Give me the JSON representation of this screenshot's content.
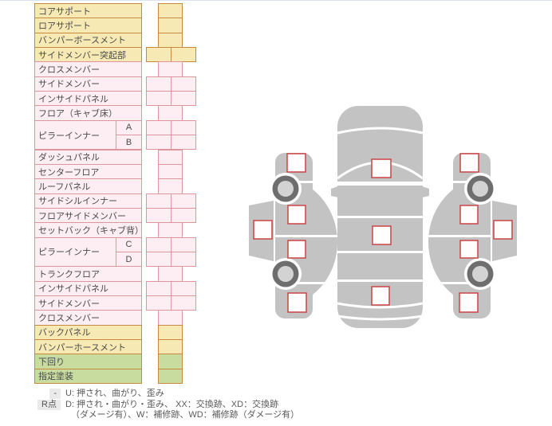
{
  "table": {
    "rows": [
      {
        "label": "コアサポート",
        "tone": "yellow",
        "cells": 1
      },
      {
        "label": "ロアサポート",
        "tone": "yellow",
        "cells": 1
      },
      {
        "label": "バンパーボースメント",
        "tone": "yellow",
        "cells": 1
      },
      {
        "label": "サイドメンバー突起部",
        "tone": "yellow",
        "cells": 2
      },
      {
        "label": "クロスメンバー",
        "tone": "pink",
        "cells": 1
      },
      {
        "label": "サイドメンバー",
        "tone": "pink",
        "cells": 2
      },
      {
        "label": "インサイドパネル",
        "tone": "pink",
        "cells": 2
      },
      {
        "label": "フロア（キャブ床）",
        "tone": "pink",
        "cells": 1
      },
      {
        "label": "ピラーインナー",
        "sub": "A",
        "tone": "pink",
        "cells": 2,
        "span": 2
      },
      {
        "sub": "B",
        "tone": "pink",
        "cells": 2,
        "merged": true
      },
      {
        "label": "ダッシュパネル",
        "tone": "pink",
        "cells": 1
      },
      {
        "label": "センターフロア",
        "tone": "pink",
        "cells": 1
      },
      {
        "label": "ルーフパネル",
        "tone": "pink",
        "cells": 1
      },
      {
        "label": "サイドシルインナー",
        "tone": "pink",
        "cells": 2
      },
      {
        "label": "フロアサイドメンバー",
        "tone": "pink",
        "cells": 2
      },
      {
        "label": "セットバック（キャブ背）",
        "tone": "pink",
        "cells": 1
      },
      {
        "label": "ピラーインナー",
        "sub": "C",
        "tone": "pink",
        "cells": 2,
        "span": 2
      },
      {
        "sub": "D",
        "tone": "pink",
        "cells": 2,
        "merged": true
      },
      {
        "label": "トランクフロア",
        "tone": "pink",
        "cells": 1
      },
      {
        "label": "インサイドパネル",
        "tone": "pink",
        "cells": 2
      },
      {
        "label": "サイドメンバー",
        "tone": "pink",
        "cells": 2
      },
      {
        "label": "クロスメンバー",
        "tone": "pink",
        "cells": 1
      },
      {
        "label": "バックパネル",
        "tone": "yellow",
        "cells": 1
      },
      {
        "label": "バンパーホースメント",
        "tone": "yellow",
        "cells": 1
      },
      {
        "label": "下回り",
        "tone": "green",
        "cells": 1
      },
      {
        "label": "指定塗装",
        "tone": "green",
        "cells": 1
      }
    ]
  },
  "legend": {
    "items": [
      {
        "badge": "-",
        "text": "U: 押され、曲がり、歪み"
      },
      {
        "badge": "R点",
        "text": "D: 押され・曲がり・歪み、 XX：交換跡、XD：交換跡",
        "text2": "（ダメージ有）、W：補修跡、WD：補修跡（ダメージ有）"
      }
    ]
  },
  "diagram": {
    "views": [
      {
        "name": "left-side-view",
        "markers": 5,
        "wheels": 2
      },
      {
        "name": "top-view",
        "markers": 3,
        "wheels": 0
      },
      {
        "name": "right-side-view",
        "markers": 5,
        "wheels": 2
      }
    ],
    "body_color": "#c3c3c3",
    "marker_border_color": "#c94444",
    "wheel_ring_color": "#6e6e6e",
    "wheel_hub_color": "#d3d3d3"
  },
  "colors": {
    "yellow_bg": "#f7e9b3",
    "yellow_border": "#c8893e",
    "pink_bg": "#fceef2",
    "pink_border": "#de959b",
    "green_bg": "#c7dc9e",
    "green_border": "#c8893e",
    "text": "#4a4a4a",
    "legend_badge_bg": "#eaeaea"
  }
}
